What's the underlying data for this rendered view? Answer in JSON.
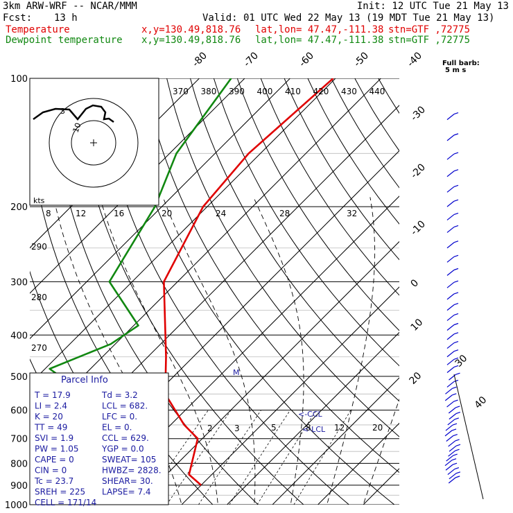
{
  "header": {
    "title": "3km ARW-WRF -- NCAR/MMM",
    "fcst_label": "Fcst:",
    "fcst_value": "13 h",
    "init": "Init: 12 UTC Tue 21 May 13",
    "valid": "Valid: 01 UTC Wed 22 May 13 (19 MDT Tue 21 May 13)",
    "temp_label": "Temperature",
    "dew_label": "Dewpoint temperature",
    "xy": "x,y=130.49,818.76",
    "latlon": "lat,lon= 47.47,-111.38",
    "stn": "stn=GTF ,72775"
  },
  "colors": {
    "temperature": "#e00000",
    "dewpoint": "#118811",
    "wind": "#0000cc",
    "parcel_text": "#1a1aa0"
  },
  "barb_legend": {
    "line1": "Full barb:",
    "line2": "5 m s"
  },
  "hodograph": {
    "kts_label": "kts",
    "ring_labels": [
      "3",
      "10"
    ],
    "speed_labels": [
      "8",
      "12",
      "16",
      "20",
      "24",
      "28",
      "32"
    ]
  },
  "chart_data": {
    "type": "line",
    "pressure_ticks": [
      "100",
      "200",
      "300",
      "400",
      "500",
      "600",
      "700",
      "800",
      "900",
      "1000"
    ],
    "isotherm_labels": [
      "-80",
      "-70",
      "-60",
      "-50",
      "-40",
      "-30",
      "-20",
      "-10",
      "0",
      "10",
      "20",
      "30",
      "40"
    ],
    "theta_labels": [
      "370",
      "380",
      "390",
      "400",
      "410",
      "420",
      "430",
      "440"
    ],
    "theta_left_labels": [
      "290",
      "280",
      "270"
    ],
    "mixing_ratio_labels": [
      "2",
      "3",
      "5",
      "8",
      "12",
      "20"
    ],
    "series": [
      {
        "name": "Temperature",
        "color": "#e00000",
        "points": [
          [
            -60.5,
            100
          ],
          [
            -62.6,
            150
          ],
          [
            -60.9,
            200
          ],
          [
            -53,
            300
          ],
          [
            -36,
            450
          ],
          [
            -28,
            550
          ],
          [
            -17,
            650
          ],
          [
            -11,
            700
          ],
          [
            -5,
            850
          ],
          [
            0,
            900
          ]
        ]
      },
      {
        "name": "Dewpoint temperature",
        "color": "#118811",
        "points": [
          [
            -83,
            100
          ],
          [
            -78.5,
            150
          ],
          [
            -71.5,
            200
          ],
          [
            -65,
            300
          ],
          [
            -49,
            380
          ],
          [
            -51,
            420
          ],
          [
            -59,
            480
          ],
          [
            -55,
            500
          ],
          [
            -33,
            600
          ],
          [
            -23,
            700
          ],
          [
            -19.5,
            750
          ],
          [
            -15,
            800
          ],
          [
            -12,
            850
          ],
          [
            -14,
            870
          ]
        ]
      }
    ],
    "annotations": {
      "ccl": "<-CCL",
      "lcl": "<-LCL",
      "mark": "M"
    },
    "wind_levels_hPa": [
      125,
      140,
      155,
      170,
      185,
      200,
      215,
      230,
      250,
      270,
      290,
      310,
      330,
      350,
      370,
      390,
      410,
      430,
      450,
      470,
      490,
      510,
      530,
      550,
      570,
      590,
      610,
      630,
      650,
      670,
      690,
      710,
      730,
      750,
      770,
      790,
      810,
      830,
      850,
      870,
      890
    ]
  },
  "parcel_info": {
    "title": "Parcel Info",
    "rows": [
      {
        "left": "T  =    17.9",
        "right": "Td =   3.2"
      },
      {
        "left": "LI =     2.4",
        "right": "LCL =  682."
      },
      {
        "left": "K  =      20",
        "right": "LFC =    0."
      },
      {
        "left": "TT =      49",
        "right": "EL  =    0."
      },
      {
        "left": "SVI =    1.9",
        "right": "CCL =  629."
      },
      {
        "left": "PW =    1.05",
        "right": "YGP =   0.0"
      },
      {
        "left": "CAPE =     0",
        "right": "SWEAT=  105"
      },
      {
        "left": "CIN =      0",
        "right": "HWBZ= 2828."
      },
      {
        "left": "Tc =    23.7",
        "right": "SHEAR=  30."
      },
      {
        "left": "SREH =   225",
        "right": "LAPSE=  7.4"
      },
      {
        "left": "CELL = 171/14",
        "right": ""
      }
    ]
  }
}
